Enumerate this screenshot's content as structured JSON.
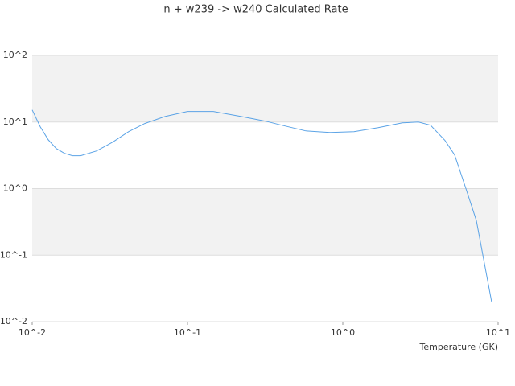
{
  "chart_data": {
    "type": "line",
    "title": "n + w239 -> w240 Calculated Rate",
    "x_label": "Temperature (GK)",
    "x": [
      0.01,
      0.01127,
      0.0127,
      0.01429,
      0.0161,
      0.01815,
      0.0205,
      0.026,
      0.033,
      0.0419,
      0.0531,
      0.0716,
      0.1,
      0.1466,
      0.222,
      0.318,
      0.404,
      0.578,
      0.826,
      1.18,
      1.69,
      2.42,
      3.07,
      3.67,
      4.55,
      5.25,
      6.28,
      7.25,
      9.08
    ],
    "values": [
      15.2,
      8.5,
      5.4,
      4.0,
      3.39,
      3.12,
      3.12,
      3.68,
      5.0,
      7.2,
      9.5,
      12.1,
      14.4,
      14.4,
      12.1,
      10.3,
      8.95,
      7.36,
      6.96,
      7.15,
      8.24,
      9.72,
      10,
      8.95,
      5.28,
      3.2,
      0.92,
      0.33,
      0.02
    ],
    "color": "#5ba3e6",
    "xlog": true,
    "ylog": true,
    "xlim": [
      0.01,
      10
    ],
    "ylim": [
      0.01,
      100
    ],
    "xticks": [
      {
        "value": 0.01,
        "label": "10^-2"
      },
      {
        "value": 0.1,
        "label": "10^-1"
      },
      {
        "value": 1,
        "label": "10^0"
      },
      {
        "value": 10,
        "label": "10^1"
      }
    ],
    "yticks": [
      {
        "value": 0.01,
        "label": "10^-2"
      },
      {
        "value": 0.1,
        "label": "10^-1"
      },
      {
        "value": 1,
        "label": "10^0"
      },
      {
        "value": 10,
        "label": "10^1"
      },
      {
        "value": 100,
        "label": "10^2"
      }
    ],
    "grid": true
  }
}
